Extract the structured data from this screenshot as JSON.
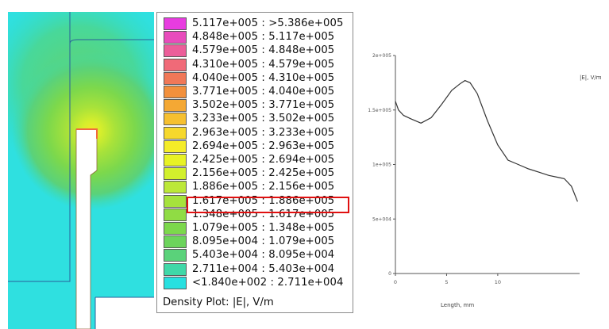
{
  "legend": {
    "caption": "Density Plot: |E|, V/m",
    "highlighted_index": 14,
    "items": [
      {
        "label": "5.117e+005 : >5.386e+005",
        "color": "#e83ce0"
      },
      {
        "label": "4.848e+005 : 5.117e+005",
        "color": "#e84cbc"
      },
      {
        "label": "4.579e+005 : 4.848e+005",
        "color": "#ec5e9a"
      },
      {
        "label": "4.310e+005 : 4.579e+005",
        "color": "#f06a78"
      },
      {
        "label": "4.040e+005 : 4.310e+005",
        "color": "#f07858"
      },
      {
        "label": "3.771e+005 : 4.040e+005",
        "color": "#f2903c"
      },
      {
        "label": "3.502e+005 : 3.771e+005",
        "color": "#f4a834"
      },
      {
        "label": "3.233e+005 : 3.502e+005",
        "color": "#f6c030"
      },
      {
        "label": "2.963e+005 : 3.233e+005",
        "color": "#f6d82c"
      },
      {
        "label": "2.694e+005 : 2.963e+005",
        "color": "#f4ec28"
      },
      {
        "label": "2.425e+005 : 2.694e+005",
        "color": "#e8f224"
      },
      {
        "label": "2.156e+005 : 2.425e+005",
        "color": "#d2f02c"
      },
      {
        "label": "1.886e+005 : 2.156e+005",
        "color": "#bce838"
      },
      {
        "label": "1.617e+005 : 1.886e+005",
        "color": "#a6e23c"
      },
      {
        "label": "1.348e+005 : 1.617e+005",
        "color": "#90dc44"
      },
      {
        "label": "1.079e+005 : 1.348e+005",
        "color": "#7cd84c"
      },
      {
        "label": "8.095e+004 : 1.079e+005",
        "color": "#6cd45c"
      },
      {
        "label": "5.403e+004 : 8.095e+004",
        "color": "#5ad27a"
      },
      {
        "label": "2.711e+004 : 5.403e+004",
        "color": "#40d8a8"
      },
      {
        "label": "<1.840e+002 : 2.711e+004",
        "color": "#28e0e0"
      }
    ]
  },
  "chart_data": {
    "type": "line",
    "title": "",
    "xlabel": "Length, mm",
    "ylabel": "|E|, V/m",
    "x_ticks": [
      "0",
      "5",
      "10"
    ],
    "y_ticks": [
      "0",
      "5e+004",
      "1e+005",
      "1.5e+005",
      "2e+005"
    ],
    "xlim": [
      0,
      18
    ],
    "ylim": [
      0,
      200000
    ],
    "grid": false,
    "series": [
      {
        "name": "|E|, V/m",
        "color": "#333333",
        "x": [
          0,
          0.3,
          0.8,
          1.5,
          2.5,
          3.5,
          4.5,
          5.5,
          6.3,
          6.8,
          7.3,
          8.0,
          9.0,
          10.0,
          11.0,
          12.0,
          13.0,
          14.0,
          15.0,
          16.0,
          16.5,
          17.2,
          17.8
        ],
        "y": [
          158000,
          150000,
          145000,
          142000,
          138000,
          143000,
          155000,
          168000,
          174000,
          177000,
          175000,
          165000,
          140000,
          118000,
          104000,
          100000,
          96000,
          93000,
          90000,
          88000,
          87000,
          80000,
          66000
        ]
      }
    ]
  }
}
